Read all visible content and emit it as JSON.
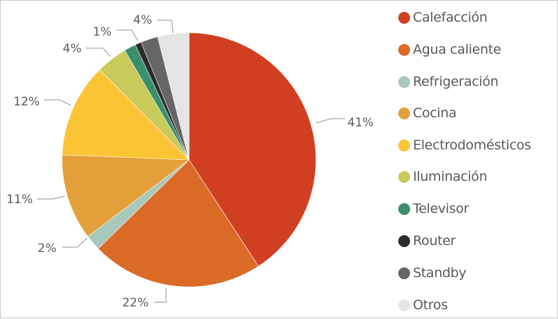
{
  "chart_data": {
    "type": "pie",
    "title": "",
    "legend_position": "right",
    "start_angle_deg": 0,
    "direction": "clockwise",
    "categories": [
      "Calefacción",
      "Agua caliente",
      "Refrigeración",
      "Cocina",
      "Electrodomésticos",
      "Iluminación",
      "Televisor",
      "Router",
      "Standby",
      "Otros"
    ],
    "values": [
      41,
      22,
      2,
      11,
      12,
      4,
      1.5,
      0.8,
      2.2,
      4
    ],
    "data_labels": [
      "41%",
      "22%",
      "2%",
      "11%",
      "12%",
      "4%",
      "",
      "1%",
      "",
      "4%"
    ],
    "colors": [
      "#d13f23",
      "#dc6a27",
      "#a8c8bb",
      "#e3a03a",
      "#fbc434",
      "#c8cb5a",
      "#3a8f6c",
      "#2b2b2b",
      "#666666",
      "#e5e5e5"
    ]
  },
  "legend": {
    "items": [
      {
        "label": "Calefacción",
        "color": "#d13f23"
      },
      {
        "label": "Agua caliente",
        "color": "#dc6a27"
      },
      {
        "label": "Refrigeración",
        "color": "#a8c8bb"
      },
      {
        "label": "Cocina",
        "color": "#e3a03a"
      },
      {
        "label": "Electrodomésticos",
        "color": "#fbc434"
      },
      {
        "label": "Iluminación",
        "color": "#c8cb5a"
      },
      {
        "label": "Televisor",
        "color": "#3a8f6c"
      },
      {
        "label": "Router",
        "color": "#2b2b2b"
      },
      {
        "label": "Standby",
        "color": "#666666"
      },
      {
        "label": "Otros",
        "color": "#e5e5e5"
      }
    ]
  }
}
